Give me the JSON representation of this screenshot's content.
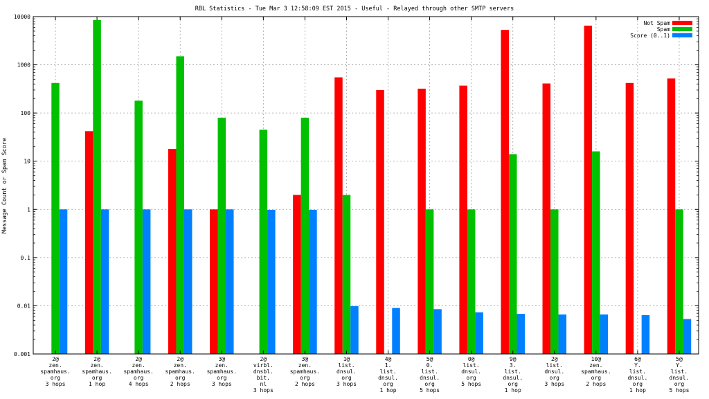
{
  "chart_data": {
    "type": "bar",
    "title": "RBL Statistics - Tue Mar  3 12:58:09 EST 2015 - Useful - Relayed through other SMTP servers",
    "xlabel": "",
    "ylabel": "Message Count or Spam Score",
    "yscale": "log",
    "ylim": [
      0.001,
      10000
    ],
    "yticks": [
      0.001,
      0.01,
      0.1,
      1,
      10,
      100,
      1000,
      10000
    ],
    "ytick_labels": [
      "0.001",
      "0.01",
      "0.1",
      "1",
      "10",
      "100",
      "1000",
      "10000"
    ],
    "grid": true,
    "legend_position": "top-right",
    "categories": [
      [
        "2@",
        "zen.",
        "spamhaus.",
        "org",
        "3 hops"
      ],
      [
        "2@",
        "zen.",
        "spamhaus.",
        "org",
        "1 hop"
      ],
      [
        "2@",
        "zen.",
        "spamhaus.",
        "org",
        "4 hops"
      ],
      [
        "2@",
        "zen.",
        "spamhaus.",
        "org",
        "2 hops"
      ],
      [
        "3@",
        "zen.",
        "spamhaus.",
        "org",
        "3 hops"
      ],
      [
        "2@",
        "virbl.",
        "dnsbl.",
        "bit.",
        "nl",
        "3 hops"
      ],
      [
        "3@",
        "zen.",
        "spamhaus.",
        "org",
        "2 hops"
      ],
      [
        "1@",
        "list.",
        "dnsul.",
        "org",
        "3 hops"
      ],
      [
        "4@",
        "1.",
        "list.",
        "dnsul.",
        "org",
        "1 hop"
      ],
      [
        "5@",
        "0.",
        "list.",
        "dnsul.",
        "org",
        "5 hops"
      ],
      [
        "0@",
        "list.",
        "dnsul.",
        "org",
        "5 hops"
      ],
      [
        "9@",
        "3.",
        "list.",
        "dnsul.",
        "org",
        "1 hop"
      ],
      [
        "2@",
        "list.",
        "dnsul.",
        "org",
        "3 hops"
      ],
      [
        "10@",
        "zen.",
        "spamhaus.",
        "org",
        "2 hops"
      ],
      [
        "6@",
        "Y.",
        "list.",
        "dnsul.",
        "org",
        "1 hop"
      ],
      [
        "5@",
        "Y.",
        "list.",
        "dnsul.",
        "org",
        "5 hops"
      ]
    ],
    "series": [
      {
        "name": "Not Spam",
        "color": "#ff0000",
        "values": [
          0,
          42,
          0,
          18,
          1,
          0,
          2,
          550,
          300,
          320,
          370,
          5300,
          410,
          6500,
          420,
          520
        ]
      },
      {
        "name": "Spam",
        "color": "#00c000",
        "values": [
          420,
          8500,
          180,
          1500,
          80,
          45,
          80,
          2,
          0,
          1,
          1,
          14,
          1,
          16,
          0,
          1
        ]
      },
      {
        "name": "Score (0..1)",
        "color": "#0080ff",
        "values": [
          1,
          1,
          1,
          1,
          1,
          0.98,
          0.98,
          0.0098,
          0.009,
          0.0085,
          0.0073,
          0.0068,
          0.0066,
          0.0066,
          0.0064,
          0.0053
        ]
      }
    ]
  }
}
